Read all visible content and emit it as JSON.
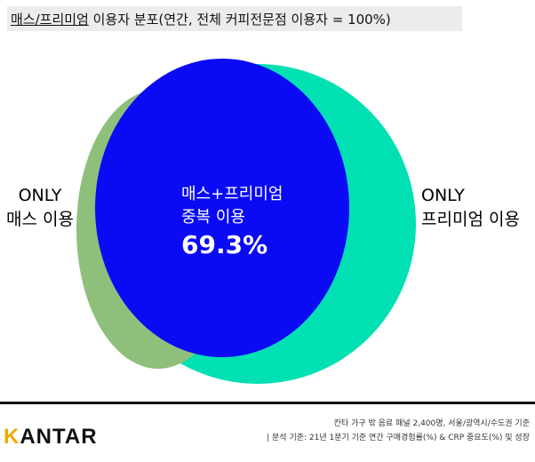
{
  "title": {
    "underlined": "매스/프리미엄",
    "rest": " 이용자 분포(연간, 전체 커피전문점 이용자 = 100%)"
  },
  "venn": {
    "left_label": [
      "ONLY",
      "매스 이용"
    ],
    "right_label": [
      "ONLY",
      "프리미엄 이용"
    ],
    "overlap_label": [
      "매스+프리미엄",
      "중복 이용"
    ],
    "overlap_value": "69.3%",
    "colors": {
      "mass_only": "#8ec07c",
      "premium_only": "#00e0b2",
      "overlap": "#0a0af5"
    }
  },
  "footer": {
    "brand": "KANTAR",
    "note1": "칸타 가구 밖 음료 패널 2,400명, 서울/광역시/수도권 기준",
    "note2": "| 분석 기준: 21년 1분기 기준 연간 구매경험률(%) & CRP 중요도(%) 및 성장"
  }
}
